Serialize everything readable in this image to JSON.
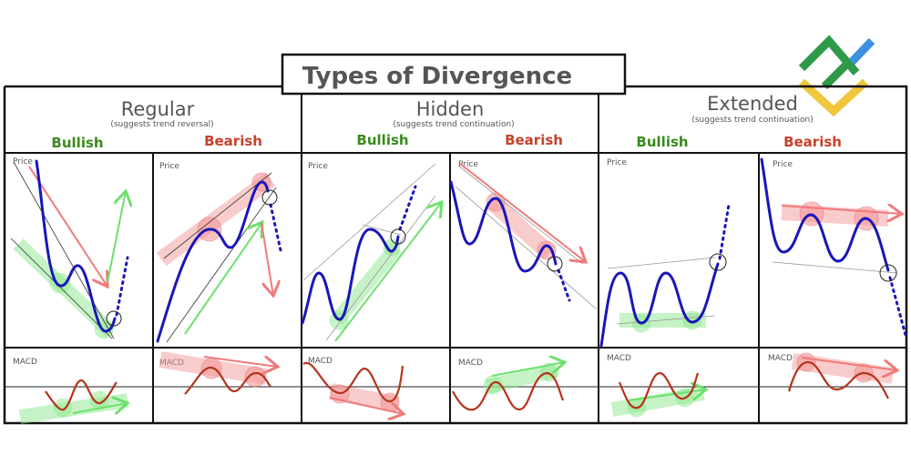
{
  "title": "Types of Divergence",
  "sections": [
    {
      "name": "Regular",
      "note": "(suggests trend reversal)",
      "bullish": "Bullish",
      "bearish": "Bearish"
    },
    {
      "name": "Hidden",
      "note": "(suggests trend continuation)",
      "bullish": "Bullish",
      "bearish": "Bearish"
    },
    {
      "name": "Extended",
      "note": "(suggests trend continuation)",
      "bullish": "Bullish",
      "bearish": "Bearish"
    }
  ],
  "labels": {
    "price": "Price",
    "macd": "MACD"
  },
  "colors": {
    "price_line": "#1a16b8",
    "bullish": "#3a8a1e",
    "bearish": "#c8412b",
    "macd_line": "#b5341c"
  },
  "logo": {
    "icon": "brand-logo-icon"
  }
}
